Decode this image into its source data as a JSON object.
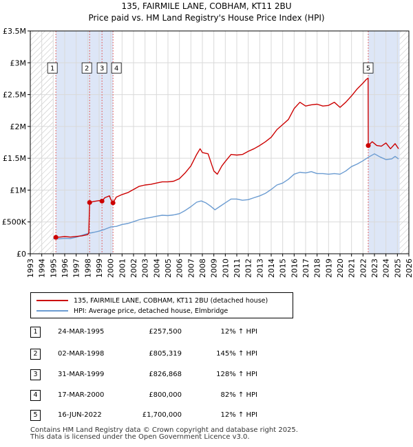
{
  "title_line1": "135, FAIRMILE LANE, COBHAM, KT11 2BU",
  "title_line2": "Price paid vs. HM Land Registry's House Price Index (HPI)",
  "colors": {
    "property": "#cc0000",
    "hpi": "#6a9bd1",
    "shade": "#dde6f7",
    "grid": "#d9d9d9"
  },
  "legend": {
    "property_label": "135, FAIRMILE LANE, COBHAM, KT11 2BU (detached house)",
    "hpi_label": "HPI: Average price, detached house, Elmbridge"
  },
  "sales": [
    {
      "num": "1",
      "date": "24-MAR-1995",
      "price": "£257,500",
      "hpi": "12% ↑ HPI"
    },
    {
      "num": "2",
      "date": "02-MAR-1998",
      "price": "£805,319",
      "hpi": "145% ↑ HPI"
    },
    {
      "num": "3",
      "date": "31-MAR-1999",
      "price": "£826,868",
      "hpi": "128% ↑ HPI"
    },
    {
      "num": "4",
      "date": "17-MAR-2000",
      "price": "£800,000",
      "hpi": "82% ↑ HPI"
    },
    {
      "num": "5",
      "date": "16-JUN-2022",
      "price": "£1,700,000",
      "hpi": "12% ↑ HPI"
    }
  ],
  "footer_line1": "Contains HM Land Registry data © Crown copyright and database right 2025.",
  "footer_line2": "This data is licensed under the Open Government Licence v3.0.",
  "chart_data": {
    "type": "line",
    "title": "135, FAIRMILE LANE, COBHAM, KT11 2BU",
    "subtitle": "Price paid vs. HM Land Registry's House Price Index (HPI)",
    "xlabel": "",
    "ylabel": "",
    "xlim": [
      1993,
      2026
    ],
    "ylim": [
      0,
      3500000
    ],
    "x_ticks": [
      "1993",
      "1994",
      "1995",
      "1996",
      "1997",
      "1998",
      "1999",
      "2000",
      "2001",
      "2002",
      "2003",
      "2004",
      "2005",
      "2006",
      "2007",
      "2008",
      "2009",
      "2010",
      "2011",
      "2012",
      "2013",
      "2014",
      "2015",
      "2016",
      "2017",
      "2018",
      "2019",
      "2020",
      "2021",
      "2022",
      "2023",
      "2024",
      "2025",
      "2026"
    ],
    "y_ticks": [
      {
        "value": 0,
        "label": "£0"
      },
      {
        "value": 500000,
        "label": "£500K"
      },
      {
        "value": 1000000,
        "label": "£1M"
      },
      {
        "value": 1500000,
        "label": "£1.5M"
      },
      {
        "value": 2000000,
        "label": "£2M"
      },
      {
        "value": 2500000,
        "label": "£2.5M"
      },
      {
        "value": 3000000,
        "label": "£3M"
      },
      {
        "value": 3500000,
        "label": "£3.5M"
      }
    ],
    "grid": true,
    "hatched_ranges": [
      [
        1993,
        1995.0
      ],
      [
        2025.2,
        2026
      ]
    ],
    "shaded_ranges": [
      [
        1995.23,
        2000.21
      ],
      [
        2022.46,
        2025.2
      ]
    ],
    "series": [
      {
        "name": "135, FAIRMILE LANE, COBHAM, KT11 2BU (detached house)",
        "color": "#cc0000",
        "points": [
          [
            1995.23,
            257500
          ],
          [
            1995.6,
            262000
          ],
          [
            1996.0,
            270000
          ],
          [
            1996.5,
            262000
          ],
          [
            1997.0,
            272000
          ],
          [
            1997.5,
            282000
          ],
          [
            1998.0,
            300000
          ],
          [
            1998.1,
            325000
          ],
          [
            1998.17,
            805319
          ],
          [
            1998.5,
            820000
          ],
          [
            1999.0,
            835000
          ],
          [
            1999.25,
            826868
          ],
          [
            1999.5,
            880000
          ],
          [
            1999.9,
            910000
          ],
          [
            2000.0,
            860000
          ],
          [
            2000.21,
            800000
          ],
          [
            2000.5,
            890000
          ],
          [
            2001.0,
            930000
          ],
          [
            2001.5,
            960000
          ],
          [
            2002.0,
            1010000
          ],
          [
            2002.5,
            1060000
          ],
          [
            2003.0,
            1080000
          ],
          [
            2003.5,
            1090000
          ],
          [
            2004.0,
            1110000
          ],
          [
            2004.5,
            1130000
          ],
          [
            2005.0,
            1130000
          ],
          [
            2005.5,
            1140000
          ],
          [
            2006.0,
            1180000
          ],
          [
            2006.5,
            1270000
          ],
          [
            2007.0,
            1380000
          ],
          [
            2007.5,
            1560000
          ],
          [
            2007.8,
            1650000
          ],
          [
            2008.0,
            1590000
          ],
          [
            2008.5,
            1570000
          ],
          [
            2009.0,
            1300000
          ],
          [
            2009.3,
            1250000
          ],
          [
            2009.7,
            1380000
          ],
          [
            2010.0,
            1450000
          ],
          [
            2010.5,
            1560000
          ],
          [
            2011.0,
            1550000
          ],
          [
            2011.5,
            1560000
          ],
          [
            2012.0,
            1610000
          ],
          [
            2012.5,
            1650000
          ],
          [
            2013.0,
            1700000
          ],
          [
            2013.5,
            1760000
          ],
          [
            2014.0,
            1830000
          ],
          [
            2014.5,
            1950000
          ],
          [
            2015.0,
            2030000
          ],
          [
            2015.5,
            2110000
          ],
          [
            2016.0,
            2280000
          ],
          [
            2016.5,
            2380000
          ],
          [
            2017.0,
            2320000
          ],
          [
            2017.5,
            2340000
          ],
          [
            2018.0,
            2350000
          ],
          [
            2018.5,
            2320000
          ],
          [
            2019.0,
            2330000
          ],
          [
            2019.5,
            2380000
          ],
          [
            2020.0,
            2300000
          ],
          [
            2020.5,
            2380000
          ],
          [
            2021.0,
            2480000
          ],
          [
            2021.5,
            2590000
          ],
          [
            2022.0,
            2680000
          ],
          [
            2022.3,
            2740000
          ],
          [
            2022.45,
            2760000
          ],
          [
            2022.46,
            1700000
          ],
          [
            2022.8,
            1760000
          ],
          [
            2023.2,
            1700000
          ],
          [
            2023.6,
            1690000
          ],
          [
            2024.0,
            1740000
          ],
          [
            2024.4,
            1650000
          ],
          [
            2024.8,
            1730000
          ],
          [
            2025.1,
            1650000
          ]
        ]
      },
      {
        "name": "HPI: Average price, detached house, Elmbridge",
        "color": "#6a9bd1",
        "points": [
          [
            1995.0,
            240000
          ],
          [
            1995.5,
            236000
          ],
          [
            1996.0,
            242000
          ],
          [
            1996.5,
            240000
          ],
          [
            1997.0,
            260000
          ],
          [
            1997.5,
            290000
          ],
          [
            1998.0,
            318000
          ],
          [
            1998.5,
            335000
          ],
          [
            1999.0,
            355000
          ],
          [
            1999.5,
            385000
          ],
          [
            2000.0,
            420000
          ],
          [
            2000.5,
            430000
          ],
          [
            2001.0,
            460000
          ],
          [
            2001.5,
            475000
          ],
          [
            2002.0,
            505000
          ],
          [
            2002.5,
            535000
          ],
          [
            2003.0,
            555000
          ],
          [
            2003.5,
            570000
          ],
          [
            2004.0,
            590000
          ],
          [
            2004.5,
            605000
          ],
          [
            2005.0,
            600000
          ],
          [
            2005.5,
            610000
          ],
          [
            2006.0,
            630000
          ],
          [
            2006.5,
            680000
          ],
          [
            2007.0,
            740000
          ],
          [
            2007.5,
            810000
          ],
          [
            2007.9,
            830000
          ],
          [
            2008.3,
            800000
          ],
          [
            2008.7,
            750000
          ],
          [
            2009.1,
            690000
          ],
          [
            2009.5,
            740000
          ],
          [
            2010.0,
            800000
          ],
          [
            2010.5,
            860000
          ],
          [
            2011.0,
            860000
          ],
          [
            2011.5,
            840000
          ],
          [
            2012.0,
            850000
          ],
          [
            2012.5,
            880000
          ],
          [
            2013.0,
            910000
          ],
          [
            2013.5,
            950000
          ],
          [
            2014.0,
            1010000
          ],
          [
            2014.5,
            1080000
          ],
          [
            2015.0,
            1110000
          ],
          [
            2015.5,
            1170000
          ],
          [
            2016.0,
            1250000
          ],
          [
            2016.5,
            1280000
          ],
          [
            2017.0,
            1270000
          ],
          [
            2017.5,
            1290000
          ],
          [
            2018.0,
            1260000
          ],
          [
            2018.5,
            1260000
          ],
          [
            2019.0,
            1250000
          ],
          [
            2019.5,
            1260000
          ],
          [
            2020.0,
            1250000
          ],
          [
            2020.5,
            1300000
          ],
          [
            2021.0,
            1370000
          ],
          [
            2021.5,
            1410000
          ],
          [
            2022.0,
            1460000
          ],
          [
            2022.5,
            1520000
          ],
          [
            2023.0,
            1570000
          ],
          [
            2023.5,
            1520000
          ],
          [
            2024.0,
            1480000
          ],
          [
            2024.5,
            1490000
          ],
          [
            2024.8,
            1530000
          ],
          [
            2025.1,
            1490000
          ]
        ]
      }
    ],
    "sale_markers": [
      {
        "label": "1",
        "x": 1995.23,
        "y": 257500
      },
      {
        "label": "2",
        "x": 1998.17,
        "y": 805319
      },
      {
        "label": "3",
        "x": 1999.25,
        "y": 826868
      },
      {
        "label": "4",
        "x": 2000.21,
        "y": 800000
      },
      {
        "label": "5",
        "x": 2022.46,
        "y": 1700000
      }
    ]
  }
}
